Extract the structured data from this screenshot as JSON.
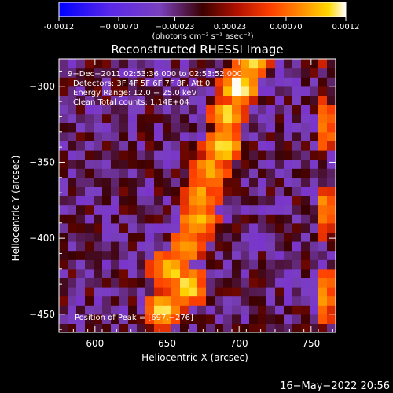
{
  "chart_data": {
    "type": "heatmap",
    "title": "Reconstructed RHESSI Image",
    "xlabel": "Heliocentric X (arcsec)",
    "ylabel": "Heliocentric Y (arcsec)",
    "xlim": [
      575,
      767
    ],
    "ylim": [
      -462,
      -282
    ],
    "x_ticks": [
      600,
      650,
      700,
      750
    ],
    "y_ticks": [
      -300,
      -350,
      -400,
      -450
    ],
    "colorbar": {
      "range": [
        -0.0012,
        0.0012
      ],
      "ticks": [
        -0.0012,
        -0.0007,
        -0.00023,
        0.00023,
        0.0007,
        0.0012
      ],
      "tick_labels": [
        "-0.0012",
        "−0.00070",
        "−0.00023",
        "0.00023",
        "0.00070",
        "0.0012"
      ],
      "unit_label": "(photons cm⁻² s⁻¹ asec⁻²)",
      "colormap": [
        "#0000ff",
        "#7a28d8",
        "#7a40c0",
        "#3a0000",
        "#b01000",
        "#ff4000",
        "#ff9000",
        "#ffd800",
        "#ffffff"
      ]
    },
    "annotations": [
      "9−Dec−2011 02:53:36.000 to 02:53:52.000",
      "Detectors: 3F 4F 5F 6F 7F 8F, Att 0",
      "Energy Range: 12.0 − 25.0 keV",
      "Clean    Total counts: 1.14E+04"
    ],
    "peak_label": "Position of Peak = [697,−276]",
    "peak": [
      697,
      -276
    ],
    "emission_ridge": [
      {
        "x": 710,
        "y": -282,
        "v": 0.0011
      },
      {
        "x": 700,
        "y": -300,
        "v": 0.0012
      },
      {
        "x": 692,
        "y": -318,
        "v": 0.0009
      },
      {
        "x": 688,
        "y": -340,
        "v": 0.0011
      },
      {
        "x": 680,
        "y": -356,
        "v": 0.0008
      },
      {
        "x": 673,
        "y": -372,
        "v": 0.0007
      },
      {
        "x": 672,
        "y": -388,
        "v": 0.0009
      },
      {
        "x": 665,
        "y": -404,
        "v": 0.0007
      },
      {
        "x": 652,
        "y": -420,
        "v": 0.001
      },
      {
        "x": 664,
        "y": -432,
        "v": 0.0011
      },
      {
        "x": 648,
        "y": -446,
        "v": 0.001
      }
    ]
  },
  "footer": {
    "timestamp": "16−May−2022 20:56"
  }
}
